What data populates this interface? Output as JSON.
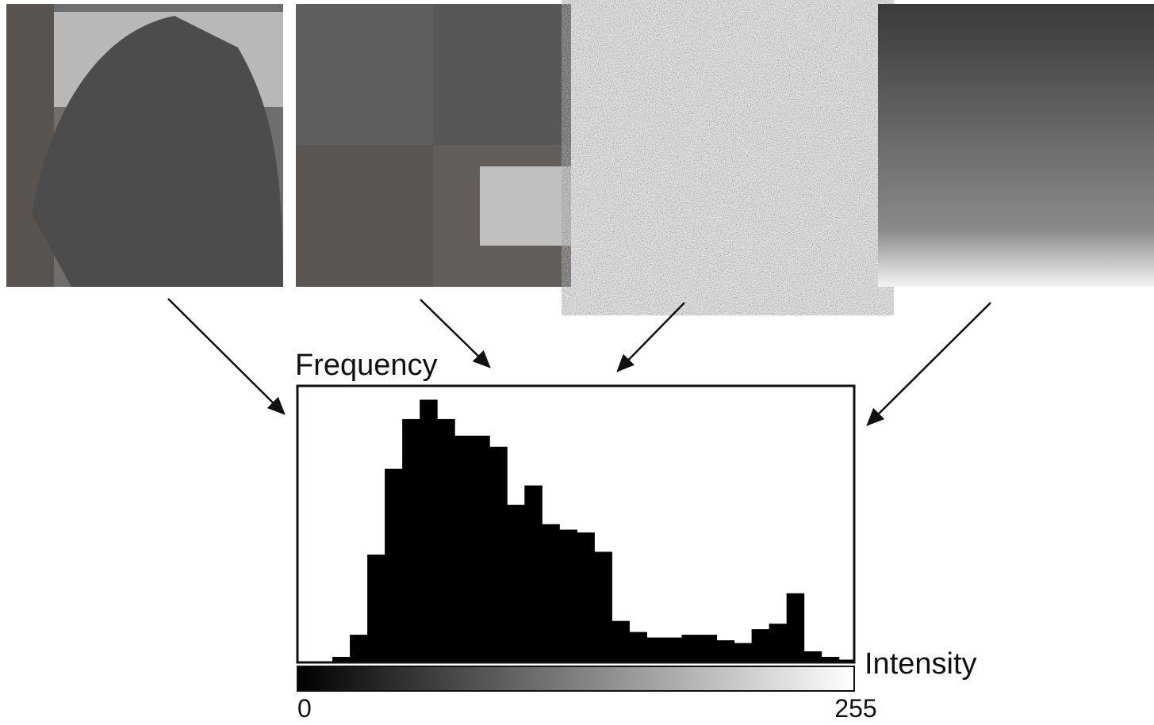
{
  "chart_data": {
    "type": "histogram",
    "y_label": "Frequency",
    "x_label": "Intensity",
    "bins": [
      0,
      8,
      16,
      24,
      32,
      40,
      48,
      56,
      64,
      72,
      80,
      88,
      96,
      104,
      112,
      120,
      128,
      136,
      144,
      152,
      160,
      168,
      176,
      184,
      192,
      200,
      208,
      216,
      224,
      232,
      240,
      248,
      255
    ],
    "values": [
      0,
      0,
      2,
      10,
      39,
      70,
      88,
      95,
      88,
      82,
      82,
      78,
      57,
      64,
      50,
      48,
      47,
      40,
      15,
      11,
      9,
      9,
      10,
      10,
      8,
      7,
      12,
      14,
      25,
      4,
      2,
      1
    ],
    "color": "#000000",
    "xlim": [
      0,
      255
    ],
    "xticks": [
      0,
      255
    ],
    "ylim": [
      0,
      100
    ]
  }
}
